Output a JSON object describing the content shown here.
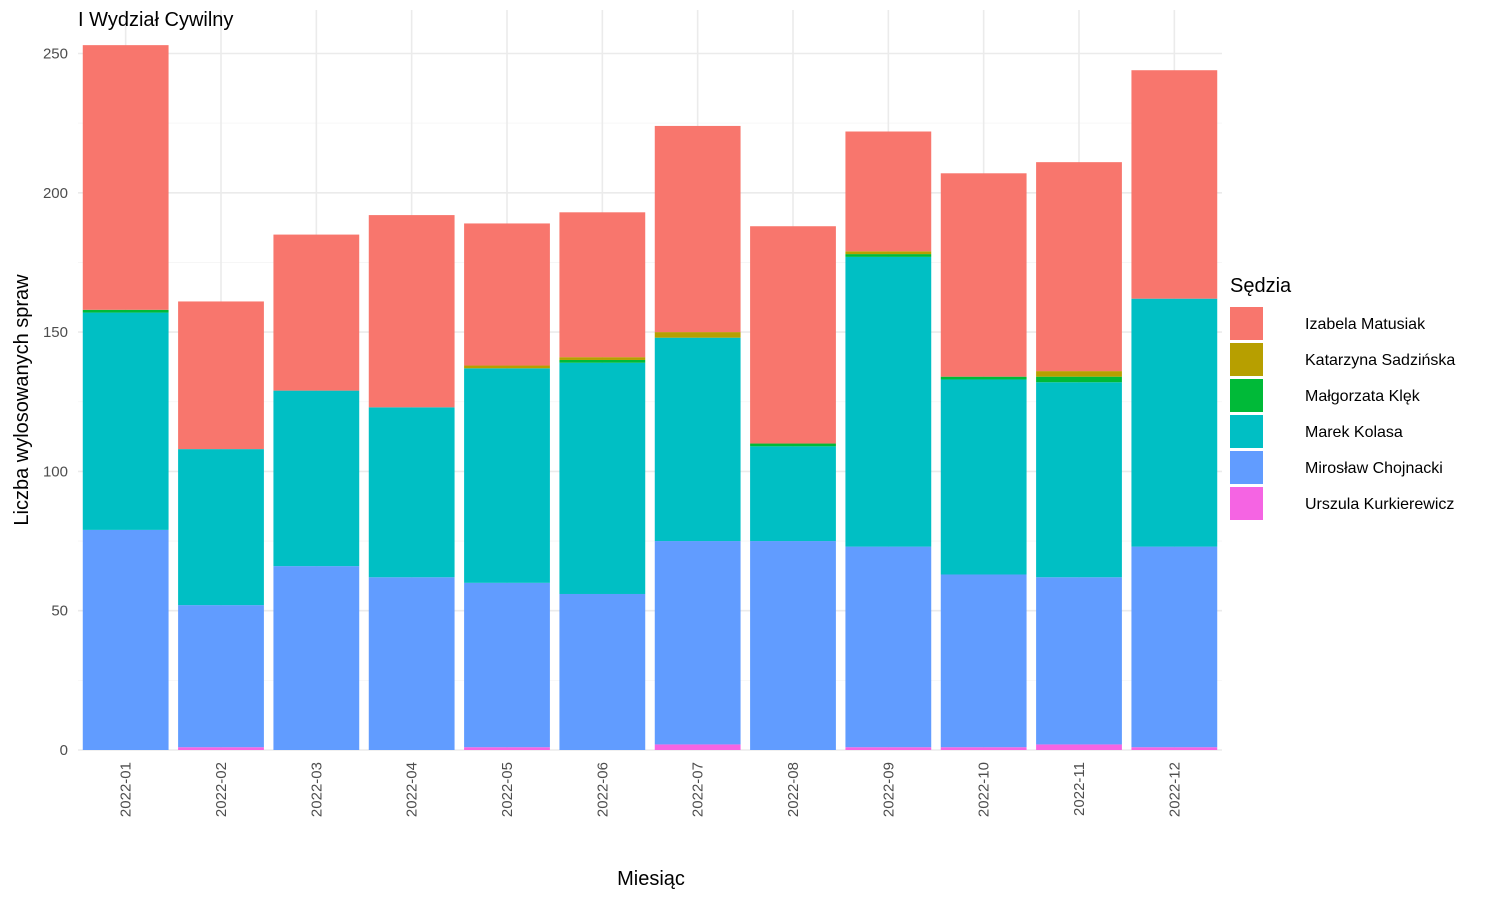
{
  "chart_data": {
    "type": "bar",
    "stacked": true,
    "title": "I Wydział Cywilny",
    "xlabel": "Miesiąc",
    "ylabel": "Liczba wylosowanych spraw",
    "ylim": [
      0,
      260
    ],
    "yticks": [
      0,
      50,
      100,
      150,
      200,
      250
    ],
    "grid": true,
    "legend": {
      "title": "Sędzia",
      "position": "right"
    },
    "categories": [
      "2022-01",
      "2022-02",
      "2022-03",
      "2022-04",
      "2022-05",
      "2022-06",
      "2022-07",
      "2022-08",
      "2022-09",
      "2022-10",
      "2022-11",
      "2022-12"
    ],
    "series": [
      {
        "name": "Urszula Kurkierewicz",
        "color": "#F564E3",
        "values": [
          0,
          1,
          0,
          0,
          1,
          0,
          2,
          0,
          1,
          1,
          2,
          1
        ]
      },
      {
        "name": "Mirosław Chojnacki",
        "color": "#619CFF",
        "values": [
          79,
          51,
          66,
          62,
          59,
          56,
          73,
          75,
          72,
          62,
          60,
          72
        ]
      },
      {
        "name": "Marek Kolasa",
        "color": "#00BFC4",
        "values": [
          78,
          56,
          63,
          61,
          77,
          83,
          73,
          34,
          104,
          70,
          70,
          89
        ]
      },
      {
        "name": "Małgorzata Klęk",
        "color": "#00BA38",
        "values": [
          1,
          0,
          0,
          0,
          0,
          1,
          0,
          1,
          1,
          1,
          2,
          0
        ]
      },
      {
        "name": "Katarzyna Sadzińska",
        "color": "#B79F00",
        "values": [
          0,
          0,
          0,
          0,
          1,
          1,
          2,
          0,
          1,
          0,
          2,
          0
        ]
      },
      {
        "name": "Izabela Matusiak",
        "color": "#F8766D",
        "values": [
          95,
          53,
          56,
          69,
          51,
          52,
          74,
          78,
          43,
          73,
          75,
          82
        ]
      }
    ],
    "legend_order": [
      "Izabela Matusiak",
      "Katarzyna Sadzińska",
      "Małgorzata Klęk",
      "Marek Kolasa",
      "Mirosław Chojnacki",
      "Urszula Kurkierewicz"
    ]
  }
}
